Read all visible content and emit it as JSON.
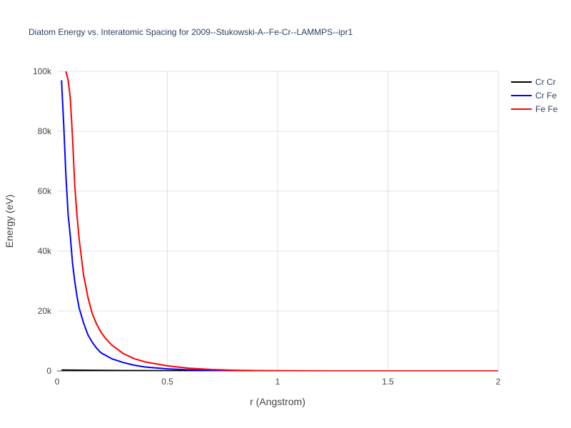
{
  "chart_data": {
    "type": "line",
    "title": "Diatom Energy vs. Interatomic Spacing for 2009--Stukowski-A--Fe-Cr--LAMMPS--ipr1",
    "xlabel": "r (Angstrom)",
    "ylabel": "Energy (eV)",
    "xlim": [
      0,
      2
    ],
    "ylim": [
      0,
      100000
    ],
    "x_ticks": [
      0,
      0.5,
      1,
      1.5,
      2
    ],
    "x_tick_labels": [
      "0",
      "0.5",
      "1",
      "1.5",
      "2"
    ],
    "y_ticks": [
      0,
      20000,
      40000,
      60000,
      80000,
      100000
    ],
    "y_tick_labels": [
      "0",
      "20k",
      "40k",
      "60k",
      "80k",
      "100k"
    ],
    "grid": true,
    "legend_position": "top-right",
    "series": [
      {
        "name": "Cr Cr",
        "color": "#000000",
        "x": [
          0.02,
          0.1,
          0.2,
          0.3,
          0.5,
          0.75,
          1.0,
          1.5,
          2.0
        ],
        "y": [
          300,
          250,
          180,
          120,
          60,
          20,
          0,
          0,
          0
        ]
      },
      {
        "name": "Cr Fe",
        "color": "#0000ff",
        "x": [
          0.02,
          0.03,
          0.04,
          0.05,
          0.06,
          0.07,
          0.08,
          0.09,
          0.1,
          0.12,
          0.14,
          0.16,
          0.18,
          0.2,
          0.25,
          0.3,
          0.35,
          0.4,
          0.5,
          0.6,
          0.7,
          0.8,
          1.0,
          1.25,
          1.5,
          1.75,
          2.0
        ],
        "y": [
          97000,
          82000,
          65000,
          52000,
          45000,
          36000,
          30000,
          25000,
          21000,
          16000,
          12000,
          9500,
          7500,
          6000,
          4000,
          2800,
          1900,
          1300,
          700,
          350,
          170,
          80,
          20,
          5,
          0,
          0,
          0
        ]
      },
      {
        "name": "Fe Fe",
        "color": "#ff0000",
        "x": [
          0.02,
          0.03,
          0.04,
          0.05,
          0.06,
          0.07,
          0.08,
          0.09,
          0.1,
          0.12,
          0.14,
          0.16,
          0.18,
          0.2,
          0.22,
          0.25,
          0.3,
          0.35,
          0.4,
          0.5,
          0.6,
          0.7,
          0.8,
          0.9,
          1.0,
          1.25,
          1.5,
          1.75,
          2.0
        ],
        "y": [
          104000,
          101000,
          100000,
          97000,
          91000,
          78000,
          62000,
          52000,
          44000,
          32000,
          24500,
          19000,
          15500,
          12800,
          10800,
          8500,
          5800,
          4100,
          3000,
          1700,
          900,
          480,
          250,
          120,
          50,
          10,
          0,
          0,
          0
        ]
      }
    ]
  }
}
